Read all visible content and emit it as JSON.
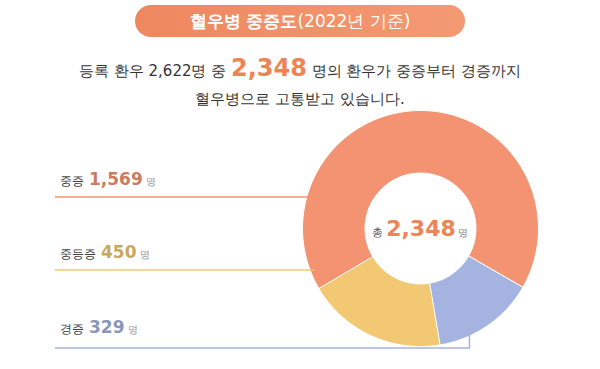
{
  "chart_data": {
    "type": "pie",
    "title": "혈우병 중증도(2022년 기준)",
    "subtitle": [
      "등록 환우 2,622명 중 2,348 명의 환우가 중증부터 경증까지",
      "혈우병으로 고통받고 있습니다."
    ],
    "categories": [
      "중증",
      "중등증",
      "경증"
    ],
    "values": [
      1569,
      450,
      329
    ],
    "value_labels": [
      "1,569",
      "450",
      "329"
    ],
    "unit": "명",
    "colors": [
      "#F39371",
      "#F2C873",
      "#A4B3E0"
    ],
    "data_labels": true,
    "center_label": {
      "prefix": "총",
      "value": 2348,
      "label": "2,348",
      "unit": "명"
    }
  }
}
